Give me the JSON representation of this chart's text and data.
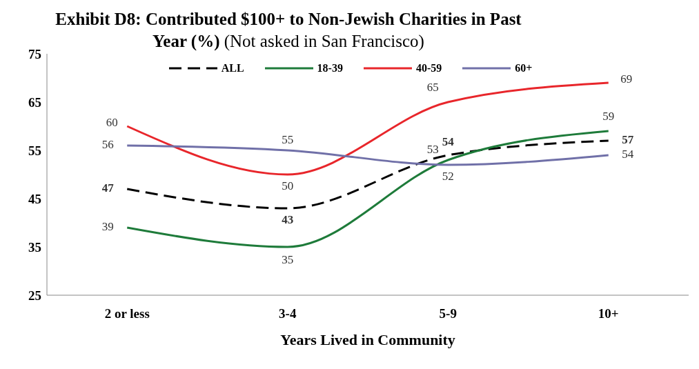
{
  "chart_data": {
    "type": "line",
    "title": "Exhibit D8: Contributed $100+ to Non-Jewish Charities in Past Year (%)",
    "subtitle": "(Not asked in San Francisco)",
    "xlabel": "Years Lived in Community",
    "categories": [
      "2 or less",
      "3-4",
      "5-9",
      "10+"
    ],
    "series": [
      {
        "name": "ALL",
        "color": "#000000",
        "line_style": "dashed",
        "values": [
          47,
          43,
          54,
          57
        ]
      },
      {
        "name": "18-39",
        "color": "#1e7b3a",
        "values": [
          39,
          35,
          53,
          59
        ]
      },
      {
        "name": "40-59",
        "color": "#e8262b",
        "values": [
          60,
          50,
          65,
          69
        ]
      },
      {
        "name": "60+",
        "color": "#7070a8",
        "values": [
          56,
          55,
          52,
          54
        ]
      }
    ],
    "ylim": [
      25,
      75
    ],
    "yticks": [
      25,
      35,
      45,
      55,
      65,
      75
    ],
    "grid": false,
    "legend": "top",
    "marker": "none",
    "data_labels": true
  }
}
